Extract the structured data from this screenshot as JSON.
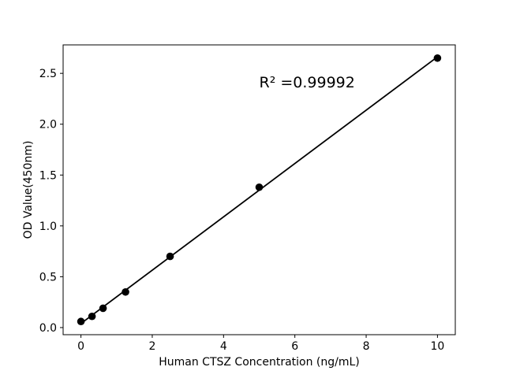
{
  "figure": {
    "background": "#ffffff",
    "foreground": "#000000"
  },
  "chart_data": {
    "type": "scatter",
    "title": "",
    "xlabel": "Human CTSZ Concentration (ng/mL)",
    "ylabel": "OD Value(450nm)",
    "annotation": {
      "text": "R² =0.99992",
      "x": 5.0,
      "y": 2.36
    },
    "x": [
      0,
      0.31,
      0.62,
      1.25,
      2.5,
      5,
      10
    ],
    "y": [
      0.06,
      0.11,
      0.19,
      0.35,
      0.7,
      1.38,
      2.65
    ],
    "fit_line": true,
    "marker": "circle",
    "marker_color": "#000000",
    "line_color": "#000000",
    "xlim": [
      -0.5,
      10.5
    ],
    "ylim": [
      -0.07,
      2.78
    ],
    "xticks": [
      {
        "value": 0,
        "label": "0"
      },
      {
        "value": 2,
        "label": "2"
      },
      {
        "value": 4,
        "label": "4"
      },
      {
        "value": 6,
        "label": "6"
      },
      {
        "value": 8,
        "label": "8"
      },
      {
        "value": 10,
        "label": "10"
      }
    ],
    "yticks": [
      {
        "value": 0.0,
        "label": "0.0"
      },
      {
        "value": 0.5,
        "label": "0.5"
      },
      {
        "value": 1.0,
        "label": "1.0"
      },
      {
        "value": 1.5,
        "label": "1.5"
      },
      {
        "value": 2.0,
        "label": "2.0"
      },
      {
        "value": 2.5,
        "label": "2.5"
      }
    ],
    "grid": false,
    "legend": false
  }
}
